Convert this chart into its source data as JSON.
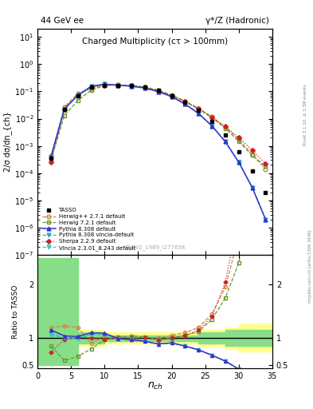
{
  "title_left": "44 GeV ee",
  "title_right": "γ*/Z (Hadronic)",
  "plot_title": "Charged Multiplicity (cτ > 100mm)",
  "xlabel": "n_{ch}",
  "ylabel_main": "2/σ dσ/dn_{ch}",
  "ylabel_ratio": "Ratio to TASSO",
  "watermark": "TASSO_1989_I277658",
  "rivet_label": "Rivet 3.1.10, ≥ 3.3M events",
  "arxiv_label": "mcplots.cern.ch [arXiv:1306.3436]",
  "tasso_x": [
    2,
    4,
    6,
    8,
    10,
    12,
    14,
    16,
    18,
    20,
    22,
    24,
    26,
    28,
    30,
    32,
    34
  ],
  "tasso_y": [
    0.00035,
    0.022,
    0.07,
    0.14,
    0.17,
    0.17,
    0.16,
    0.14,
    0.11,
    0.07,
    0.04,
    0.02,
    0.008,
    0.0025,
    0.0006,
    0.00012,
    2e-05
  ],
  "herwig_x": [
    2,
    4,
    6,
    8,
    10,
    12,
    14,
    16,
    18,
    20,
    22,
    24,
    26,
    28,
    30,
    32,
    34
  ],
  "herwig_y": [
    0.00042,
    0.027,
    0.084,
    0.126,
    0.179,
    0.173,
    0.16,
    0.143,
    0.11,
    0.074,
    0.044,
    0.024,
    0.0116,
    0.0049,
    0.00174,
    0.00048,
    0.00014
  ],
  "herwig72_x": [
    2,
    4,
    6,
    8,
    10,
    12,
    14,
    16,
    18,
    20,
    22,
    24,
    26,
    28,
    30,
    32,
    34
  ],
  "herwig72_y": [
    0.0003,
    0.013,
    0.046,
    0.112,
    0.164,
    0.173,
    0.166,
    0.143,
    0.108,
    0.07,
    0.042,
    0.0225,
    0.0108,
    0.0044,
    0.00144,
    0.00045,
    0.00018
  ],
  "pythia_x": [
    2,
    4,
    6,
    8,
    10,
    12,
    14,
    16,
    18,
    20,
    22,
    24,
    26,
    28,
    30,
    32,
    34
  ],
  "pythia_y": [
    0.0004,
    0.023,
    0.072,
    0.154,
    0.185,
    0.168,
    0.155,
    0.132,
    0.098,
    0.064,
    0.034,
    0.0155,
    0.0054,
    0.00142,
    0.00025,
    3e-05,
    2e-06
  ],
  "pythia_vinc_x": [
    2,
    4,
    6,
    8,
    10,
    12,
    14,
    16,
    18,
    20,
    22,
    24,
    26,
    28,
    30,
    32,
    34
  ],
  "pythia_vinc_y": [
    0.00038,
    0.022,
    0.069,
    0.15,
    0.182,
    0.168,
    0.155,
    0.132,
    0.098,
    0.064,
    0.034,
    0.0155,
    0.0054,
    0.00142,
    0.00025,
    3e-05,
    2e-06
  ],
  "sherpa_x": [
    2,
    4,
    6,
    8,
    10,
    12,
    14,
    16,
    18,
    20,
    22,
    24,
    26,
    28,
    30,
    32,
    34
  ],
  "sherpa_y": [
    0.00026,
    0.022,
    0.072,
    0.14,
    0.167,
    0.17,
    0.16,
    0.14,
    0.106,
    0.07,
    0.042,
    0.023,
    0.0112,
    0.0051,
    0.002,
    0.0007,
    0.00022
  ],
  "vincia_x": [
    2,
    4,
    6,
    8,
    10,
    12,
    14,
    16,
    18,
    20,
    22,
    24,
    26,
    28,
    30,
    32,
    34
  ],
  "vincia_y": [
    0.00037,
    0.022,
    0.069,
    0.15,
    0.182,
    0.168,
    0.155,
    0.132,
    0.098,
    0.064,
    0.034,
    0.0155,
    0.0054,
    0.00142,
    0.00025,
    3e-05,
    2e-06
  ],
  "herwig_color": "#cc8844",
  "herwig72_color": "#669933",
  "pythia_color": "#3333cc",
  "pythia_vinc_color": "#33aacc",
  "sherpa_color": "#cc2222",
  "vincia_color": "#33ccbb",
  "band_edges": [
    0,
    2,
    4,
    6,
    8,
    10,
    12,
    14,
    16,
    18,
    20,
    22,
    24,
    26,
    28,
    30,
    32,
    34,
    36
  ],
  "green_lo": [
    0.5,
    0.5,
    0.5,
    0.9,
    0.9,
    0.95,
    0.95,
    0.95,
    0.95,
    0.95,
    0.95,
    0.95,
    0.9,
    0.9,
    0.85,
    0.85,
    0.85,
    0.85
  ],
  "green_hi": [
    2.5,
    2.5,
    2.5,
    1.1,
    1.1,
    1.05,
    1.05,
    1.05,
    1.05,
    1.05,
    1.05,
    1.05,
    1.1,
    1.1,
    1.15,
    1.15,
    1.15,
    1.15
  ],
  "yellow_lo": [
    0.5,
    0.5,
    0.5,
    0.85,
    0.85,
    0.9,
    0.9,
    0.9,
    0.9,
    0.9,
    0.9,
    0.9,
    0.85,
    0.85,
    0.8,
    0.75,
    0.75,
    0.75
  ],
  "yellow_hi": [
    2.5,
    2.5,
    2.5,
    1.15,
    1.15,
    1.1,
    1.1,
    1.1,
    1.1,
    1.1,
    1.1,
    1.1,
    1.15,
    1.15,
    1.2,
    1.25,
    1.25,
    1.25
  ],
  "ratio_herwig_y": [
    1.2,
    1.22,
    1.2,
    0.9,
    1.05,
    1.02,
    1.0,
    1.02,
    1.0,
    1.05,
    1.1,
    1.2,
    1.45,
    1.95,
    2.9,
    4.0,
    7.0
  ],
  "ratio_herwig72_y": [
    0.85,
    0.58,
    0.66,
    0.8,
    0.97,
    1.02,
    1.04,
    1.02,
    0.98,
    1.0,
    1.05,
    1.12,
    1.35,
    1.75,
    2.4,
    3.7,
    9.0
  ],
  "ratio_pythia_y": [
    1.15,
    1.04,
    1.03,
    1.1,
    1.09,
    0.99,
    0.97,
    0.94,
    0.89,
    0.91,
    0.85,
    0.78,
    0.68,
    0.57,
    0.42,
    0.25,
    0.1
  ],
  "ratio_pythia_vinc_y": [
    1.08,
    1.0,
    0.99,
    1.07,
    1.07,
    0.99,
    0.97,
    0.94,
    0.89,
    0.91,
    0.85,
    0.78,
    0.68,
    0.57,
    0.42,
    0.25,
    0.1
  ],
  "ratio_sherpa_y": [
    0.74,
    0.98,
    1.02,
    1.0,
    0.98,
    1.0,
    1.0,
    1.0,
    0.96,
    1.0,
    1.05,
    1.15,
    1.4,
    2.04,
    3.33,
    5.83,
    11.0
  ],
  "ratio_vincia_y": [
    1.06,
    1.0,
    0.99,
    1.07,
    1.07,
    0.99,
    0.97,
    0.94,
    0.89,
    0.91,
    0.85,
    0.78,
    0.68,
    0.57,
    0.42,
    0.25,
    0.1
  ],
  "xlim": [
    0,
    35
  ],
  "ylim_main": [
    1e-07,
    20
  ],
  "ylim_ratio": [
    0.44,
    2.55
  ]
}
